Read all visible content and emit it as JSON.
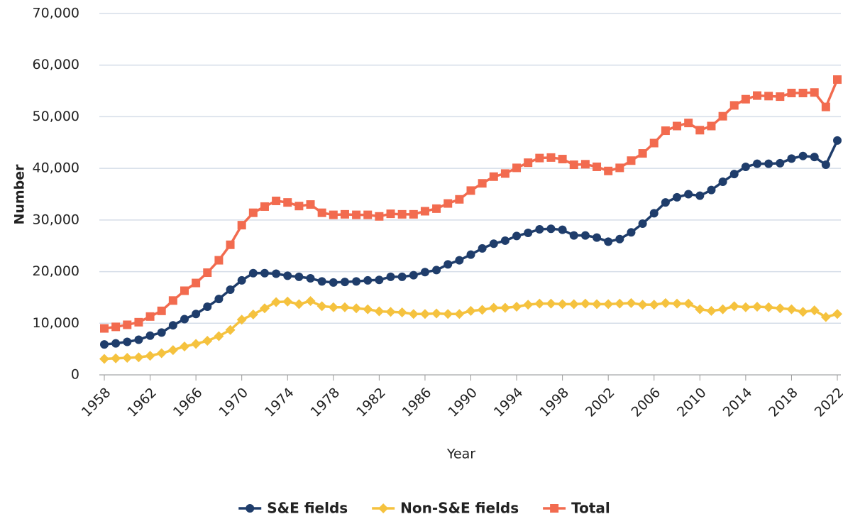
{
  "chart_data": {
    "type": "line",
    "x_label": "Year",
    "y_label": "Number",
    "x": [
      1958,
      1959,
      1960,
      1961,
      1962,
      1963,
      1964,
      1965,
      1966,
      1967,
      1968,
      1969,
      1970,
      1971,
      1972,
      1973,
      1974,
      1975,
      1976,
      1977,
      1978,
      1979,
      1980,
      1981,
      1982,
      1983,
      1984,
      1985,
      1986,
      1987,
      1988,
      1989,
      1990,
      1991,
      1992,
      1993,
      1994,
      1995,
      1996,
      1997,
      1998,
      1999,
      2000,
      2001,
      2002,
      2003,
      2004,
      2005,
      2006,
      2007,
      2008,
      2009,
      2010,
      2011,
      2012,
      2013,
      2014,
      2015,
      2016,
      2017,
      2018,
      2019,
      2020,
      2021,
      2022
    ],
    "xlim": [
      1958,
      2022
    ],
    "xticks": [
      1958,
      1962,
      1966,
      1970,
      1974,
      1978,
      1982,
      1986,
      1990,
      1994,
      1998,
      2002,
      2006,
      2010,
      2014,
      2018,
      2022
    ],
    "ylim": [
      0,
      70000
    ],
    "yticks": [
      0,
      {
        "value": 10000,
        "label": "10,000"
      },
      {
        "value": 20000,
        "label": "20,000"
      },
      {
        "value": 30000,
        "label": "30,000"
      },
      {
        "value": 40000,
        "label": "40,000"
      },
      {
        "value": 50000,
        "label": "50,000"
      },
      {
        "value": 60000,
        "label": "60,000"
      },
      {
        "value": 70000,
        "label": "70,000"
      }
    ],
    "grid": true,
    "legend": "bottom",
    "series": [
      {
        "name": "S&E fields",
        "color": "#1f3d6b",
        "marker": "circle",
        "values": [
          5900,
          6100,
          6400,
          6800,
          7600,
          8200,
          9600,
          10800,
          11800,
          13200,
          14700,
          16500,
          18300,
          19700,
          19700,
          19600,
          19200,
          19000,
          18700,
          18100,
          17900,
          18000,
          18100,
          18300,
          18400,
          19000,
          19000,
          19300,
          19900,
          20300,
          21400,
          22200,
          23300,
          24500,
          25400,
          26000,
          26900,
          27500,
          28200,
          28300,
          28100,
          27000,
          27000,
          26600,
          25800,
          26300,
          27600,
          29300,
          31300,
          33400,
          34400,
          35000,
          34700,
          35800,
          37400,
          38900,
          40300,
          40900,
          40900,
          41000,
          41900,
          42400,
          42200,
          40700,
          45400
        ]
      },
      {
        "name": "Non-S&E fields",
        "color": "#f5c23e",
        "marker": "diamond",
        "values": [
          3100,
          3200,
          3300,
          3400,
          3700,
          4200,
          4800,
          5500,
          6000,
          6600,
          7500,
          8700,
          10700,
          11700,
          12900,
          14100,
          14200,
          13700,
          14300,
          13300,
          13100,
          13100,
          12900,
          12700,
          12300,
          12200,
          12100,
          11800,
          11800,
          11900,
          11800,
          11800,
          12400,
          12600,
          13000,
          13000,
          13200,
          13600,
          13800,
          13800,
          13700,
          13700,
          13800,
          13700,
          13700,
          13800,
          13900,
          13600,
          13600,
          13900,
          13800,
          13800,
          12700,
          12400,
          12700,
          13300,
          13100,
          13200,
          13100,
          12900,
          12700,
          12200,
          12500,
          11200,
          11800
        ]
      },
      {
        "name": "Total",
        "color": "#f26b4f",
        "marker": "square",
        "values": [
          9000,
          9300,
          9700,
          10200,
          11300,
          12400,
          14400,
          16300,
          17800,
          19800,
          22200,
          25200,
          29000,
          31400,
          32600,
          33700,
          33400,
          32700,
          33000,
          31400,
          31000,
          31100,
          31000,
          31000,
          30700,
          31200,
          31100,
          31100,
          31700,
          32200,
          33200,
          34000,
          35700,
          37100,
          38400,
          39000,
          40100,
          41100,
          42000,
          42100,
          41800,
          40700,
          40800,
          40300,
          39500,
          40100,
          41500,
          42900,
          44900,
          47300,
          48200,
          48800,
          47400,
          48200,
          50100,
          52200,
          53400,
          54100,
          54000,
          53900,
          54600,
          54600,
          54700,
          51900,
          57200
        ]
      }
    ]
  }
}
